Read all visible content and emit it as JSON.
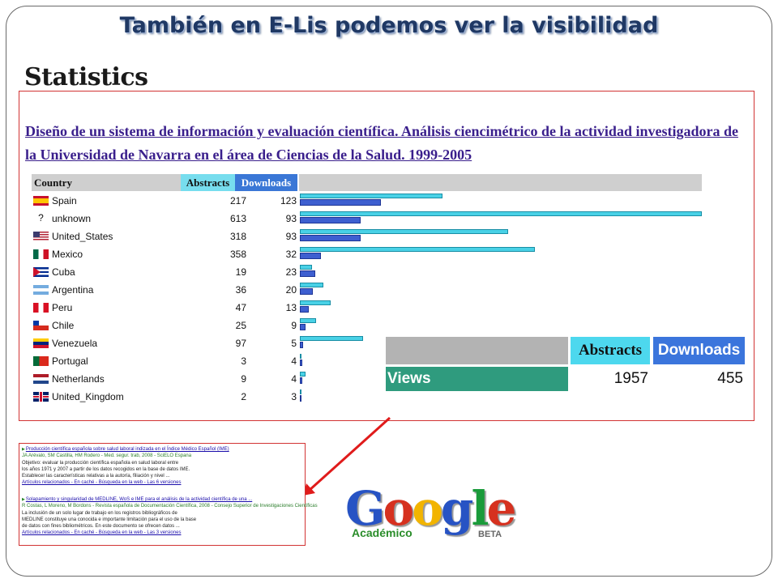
{
  "slide": {
    "title": "También en E-Lis podemos ver la visibilidad",
    "statistics_heading": "Statistics"
  },
  "stats": {
    "document_title": "Diseño de un sistema de información y evaluación científica. Análisis ciencimétrico de la actividad investigadora de la Universidad de Navarra en el área de Ciencias de la Salud. 1999-2005",
    "headers": {
      "country": "Country",
      "abstracts": "Abstracts",
      "downloads": "Downloads"
    },
    "rows": [
      {
        "flag": "spain-flag-icon",
        "country": "Spain",
        "abstracts": 217,
        "downloads": 123
      },
      {
        "flag": "unknown-flag-icon",
        "country": "unknown",
        "abstracts": 613,
        "downloads": 93
      },
      {
        "flag": "usa-flag-icon",
        "country": "United_States",
        "abstracts": 318,
        "downloads": 93
      },
      {
        "flag": "mexico-flag-icon",
        "country": "Mexico",
        "abstracts": 358,
        "downloads": 32
      },
      {
        "flag": "cuba-flag-icon",
        "country": "Cuba",
        "abstracts": 19,
        "downloads": 23
      },
      {
        "flag": "argentina-flag-icon",
        "country": "Argentina",
        "abstracts": 36,
        "downloads": 20
      },
      {
        "flag": "peru-flag-icon",
        "country": "Peru",
        "abstracts": 47,
        "downloads": 13
      },
      {
        "flag": "chile-flag-icon",
        "country": "Chile",
        "abstracts": 25,
        "downloads": 9
      },
      {
        "flag": "venezuela-flag-icon",
        "country": "Venezuela",
        "abstracts": 97,
        "downloads": 5
      },
      {
        "flag": "portugal-flag-icon",
        "country": "Portugal",
        "abstracts": 3,
        "downloads": 4
      },
      {
        "flag": "netherlands-flag-icon",
        "country": "Netherlands",
        "abstracts": 9,
        "downloads": 4
      },
      {
        "flag": "uk-flag-icon",
        "country": "United_Kingdom",
        "abstracts": 2,
        "downloads": 3
      }
    ],
    "summary": {
      "abstracts_label": "Abstracts",
      "downloads_label": "Downloads",
      "views_label": "Views",
      "abstracts_total": "1957",
      "downloads_total": "455"
    },
    "colors": {
      "abstracts": "#49d1e6",
      "downloads": "#3e5fd0",
      "views": "#2f9b7e",
      "box_border": "#d23333"
    }
  },
  "scholar_results": [
    {
      "title": "Producción científica española sobre salud laboral indizada en el Índice Médico Español (IME)",
      "meta": "JA Arévalo, SM Castilla, HM Rodero - Med. segur. trab, 2008 - SciELO Espana",
      "lines": [
        "Objetivo: evaluar la producción científica española en salud laboral entre",
        "los años 1971 y 2007 a partir de los datos recogidos en la base de datos IME.",
        "Establecer las características relativas a la autoría, filiación y nivel ..."
      ],
      "links": "Artículos relacionados - En caché - Búsqueda en la web - Las 6 versiones"
    },
    {
      "title": "Solapamiento y singularidad de MEDLINE, WoS e IME para el análisis de la actividad científica de una ...",
      "meta": "R Costas, L Moreno, M Bordons - Revista española de Documentación Científica, 2008 - Consejo Superior de Investigaciones Científicas",
      "lines": [
        "La inclusión de un solo lugar de trabajo en los registros bibliográficos de",
        "MEDLINE constituye una conocida e importante limitación para el uso de la base",
        "de datos con fines bibliométricos. En este documento se ofrecen datos ..."
      ],
      "links": "Artículos relacionados - En caché - Búsqueda en la web - Las 3 versiones"
    }
  ],
  "logo": {
    "word": "Google",
    "sub": "Académico",
    "beta": "BETA"
  }
}
